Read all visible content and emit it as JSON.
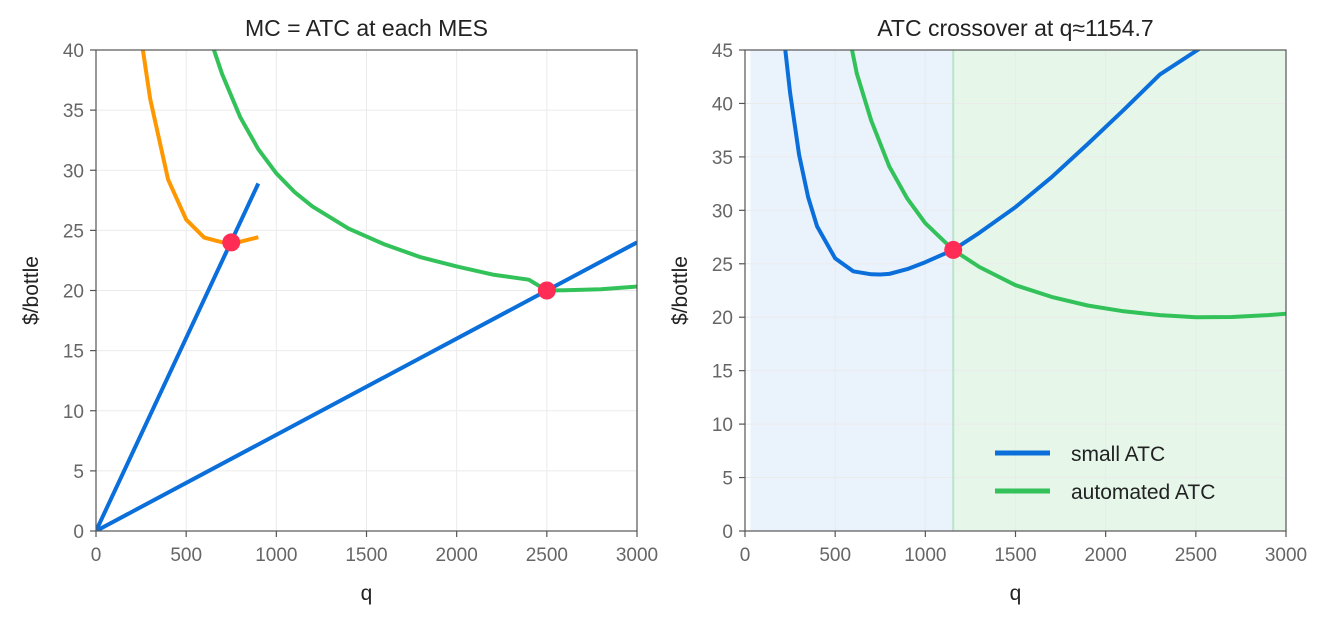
{
  "chart_data": [
    {
      "type": "line",
      "title": "MC = ATC at each MES",
      "xlabel": "q",
      "ylabel": "$/bottle",
      "xlim": [
        0,
        3000
      ],
      "ylim": [
        0,
        40
      ],
      "xticks": [
        0,
        500,
        1000,
        1500,
        2000,
        2500,
        3000
      ],
      "yticks": [
        0,
        5,
        10,
        15,
        20,
        25,
        30,
        35,
        40
      ],
      "grid": true,
      "series": [
        {
          "color": "#ff9800",
          "x": [
            250,
            300,
            400,
            500,
            600,
            700,
            750,
            800,
            900
          ],
          "y": [
            41.29,
            35.97,
            29.22,
            25.9,
            24.4,
            24.01,
            24.0,
            24.06,
            24.43
          ]
        },
        {
          "color": "#0a6fdb",
          "x": [
            0,
            900
          ],
          "y": [
            0,
            28.9
          ]
        },
        {
          "color": "#33c25a",
          "x": [
            650,
            700,
            800,
            900,
            1000,
            1100,
            1200,
            1400,
            1600,
            1800,
            2000,
            2200,
            2400,
            2500,
            2600,
            2800,
            3000
          ],
          "y": [
            40.18,
            37.98,
            34.4,
            31.75,
            29.75,
            28.2,
            26.99,
            25.15,
            23.83,
            22.77,
            22.0,
            21.32,
            20.9,
            20.0,
            20.02,
            20.1,
            20.33
          ]
        },
        {
          "color": "#0a6fdb",
          "x": [
            0,
            3000
          ],
          "y": [
            0,
            24.0
          ]
        }
      ],
      "points": [
        {
          "x": 750,
          "y": 24.0,
          "color": "#ff2d55"
        },
        {
          "x": 2500,
          "y": 20.0,
          "color": "#ff2d55"
        }
      ]
    },
    {
      "type": "line",
      "title": "ATC crossover at q≈1154.7",
      "xlabel": "q",
      "ylabel": "$/bottle",
      "xlim": [
        0,
        3000
      ],
      "ylim": [
        0,
        45
      ],
      "xticks": [
        0,
        500,
        1000,
        1500,
        2000,
        2500,
        3000
      ],
      "yticks": [
        0,
        5,
        10,
        15,
        20,
        25,
        30,
        35,
        40,
        45
      ],
      "grid": true,
      "legend": "bottom-right",
      "shaded_regions": [
        {
          "x0": 30,
          "x1": 1154.7,
          "color": "#eaf2fc"
        },
        {
          "x0": 1154.7,
          "x1": 3000,
          "color": "#e6f7ea"
        }
      ],
      "vline": {
        "x": 1154.7,
        "color": "#bfe3cb"
      },
      "series": [
        {
          "name": "small ATC",
          "color": "#0a6fdb",
          "x": [
            220,
            250,
            300,
            350,
            400,
            500,
            600,
            700,
            750,
            800,
            900,
            1000,
            1154.7,
            1300,
            1500,
            1700,
            1900,
            2100,
            2300,
            2600
          ],
          "y": [
            45.5,
            41.0,
            35.2,
            31.25,
            28.5,
            25.5,
            24.3,
            24.02,
            24.0,
            24.05,
            24.5,
            25.15,
            26.3,
            27.9,
            30.3,
            33.1,
            36.2,
            39.4,
            42.7,
            47.9
          ]
        },
        {
          "name": "automated ATC",
          "color": "#33c25a",
          "x": [
            590,
            620,
            700,
            800,
            900,
            1000,
            1154.7,
            1300,
            1500,
            1700,
            1900,
            2100,
            2300,
            2500,
            2700,
            2900,
            3000
          ],
          "y": [
            45.3,
            42.8,
            38.4,
            34.1,
            31.1,
            28.8,
            26.3,
            24.7,
            23.0,
            21.9,
            21.1,
            20.55,
            20.2,
            20.0,
            20.02,
            20.2,
            20.33
          ]
        }
      ],
      "points": [
        {
          "x": 1154.7,
          "y": 26.3,
          "color": "#ff2d55"
        }
      ]
    }
  ]
}
